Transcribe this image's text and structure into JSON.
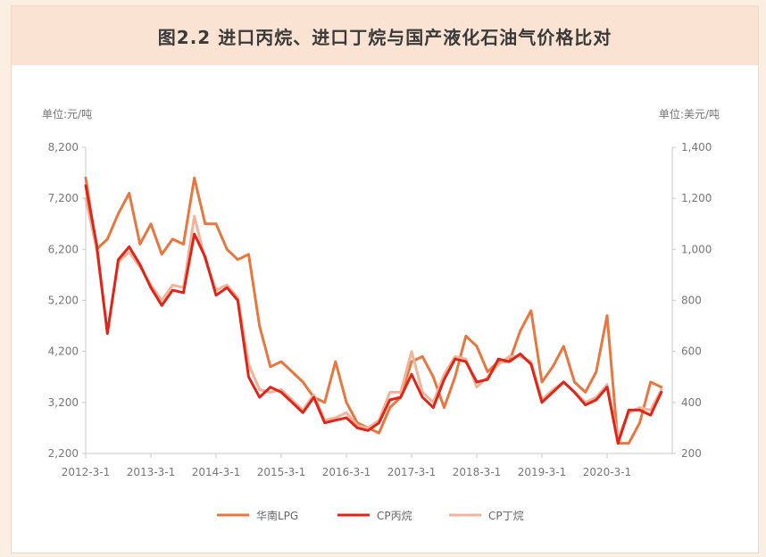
{
  "chart_data": {
    "type": "line",
    "title": "图2.2 进口丙烷、进口丁烷与国产液化石油气价格比对",
    "left_unit": "单位:元/吨",
    "right_unit": "单位:美元/吨",
    "ylim_left": [
      2200,
      8200
    ],
    "ylim_right": [
      200,
      1400
    ],
    "left_ticks": [
      2200,
      3200,
      4200,
      5200,
      6200,
      7200,
      8200
    ],
    "left_tick_labels": [
      "2,200",
      "3,200",
      "4,200",
      "5,200",
      "6,200",
      "7,200",
      "8,200"
    ],
    "right_ticks": [
      200,
      400,
      600,
      800,
      1000,
      1200,
      1400
    ],
    "right_tick_labels": [
      "200",
      "400",
      "600",
      "800",
      "1,000",
      "1,200",
      "1,400"
    ],
    "x_tick_labels": [
      "2012-3-1",
      "2013-3-1",
      "2014-3-1",
      "2015-3-1",
      "2016-3-1",
      "2017-3-1",
      "2018-3-1",
      "2019-3-1",
      "2020-3-1"
    ],
    "x_range": [
      "2012-03",
      "2021-03"
    ],
    "series": [
      {
        "name": "华南LPG",
        "axis": "left",
        "color": "#e8773f",
        "x": [
          "2012-03",
          "2012-05",
          "2012-07",
          "2012-09",
          "2012-11",
          "2013-01",
          "2013-03",
          "2013-05",
          "2013-07",
          "2013-09",
          "2013-11",
          "2014-01",
          "2014-03",
          "2014-05",
          "2014-07",
          "2014-09",
          "2014-11",
          "2015-01",
          "2015-03",
          "2015-05",
          "2015-07",
          "2015-09",
          "2015-11",
          "2016-01",
          "2016-03",
          "2016-05",
          "2016-07",
          "2016-09",
          "2016-11",
          "2017-01",
          "2017-03",
          "2017-05",
          "2017-07",
          "2017-09",
          "2017-11",
          "2018-01",
          "2018-03",
          "2018-05",
          "2018-07",
          "2018-09",
          "2018-11",
          "2019-01",
          "2019-03",
          "2019-05",
          "2019-07",
          "2019-09",
          "2019-11",
          "2020-01",
          "2020-03",
          "2020-05",
          "2020-07",
          "2020-09",
          "2020-11",
          "2021-01"
        ],
        "values": [
          7600,
          6200,
          6400,
          6900,
          7300,
          6300,
          6700,
          6100,
          6400,
          6300,
          7600,
          6700,
          6700,
          6200,
          6000,
          6100,
          4700,
          3900,
          4000,
          3800,
          3600,
          3300,
          3200,
          4000,
          3200,
          2800,
          2700,
          2600,
          3100,
          3300,
          4000,
          4100,
          3700,
          3100,
          3700,
          4500,
          4300,
          3800,
          4000,
          4000,
          4600,
          5000,
          3600,
          3900,
          4300,
          3600,
          3400,
          3800,
          4900,
          2400,
          2400,
          2800,
          3600,
          3500
        ]
      },
      {
        "name": "CP丙烷",
        "axis": "right",
        "color": "#e02418",
        "x": [
          "2012-03",
          "2012-05",
          "2012-07",
          "2012-09",
          "2012-11",
          "2013-01",
          "2013-03",
          "2013-05",
          "2013-07",
          "2013-09",
          "2013-11",
          "2014-01",
          "2014-03",
          "2014-05",
          "2014-07",
          "2014-09",
          "2014-11",
          "2015-01",
          "2015-03",
          "2015-05",
          "2015-07",
          "2015-09",
          "2015-11",
          "2016-01",
          "2016-03",
          "2016-05",
          "2016-07",
          "2016-09",
          "2016-11",
          "2017-01",
          "2017-03",
          "2017-05",
          "2017-07",
          "2017-09",
          "2017-11",
          "2018-01",
          "2018-03",
          "2018-05",
          "2018-07",
          "2018-09",
          "2018-11",
          "2019-01",
          "2019-03",
          "2019-05",
          "2019-07",
          "2019-09",
          "2019-11",
          "2020-01",
          "2020-03",
          "2020-05",
          "2020-07",
          "2020-09",
          "2020-11",
          "2021-01"
        ],
        "values": [
          1250,
          1020,
          670,
          960,
          1010,
          940,
          850,
          780,
          840,
          830,
          1060,
          970,
          820,
          850,
          800,
          500,
          420,
          460,
          440,
          400,
          360,
          420,
          320,
          330,
          340,
          300,
          290,
          320,
          410,
          420,
          510,
          420,
          380,
          490,
          570,
          560,
          480,
          490,
          570,
          560,
          590,
          550,
          400,
          440,
          480,
          440,
          390,
          410,
          460,
          240,
          370,
          370,
          350,
          440
        ]
      },
      {
        "name": "CP丁烷",
        "axis": "right",
        "color": "#f2b39a",
        "x": [
          "2012-03",
          "2012-05",
          "2012-07",
          "2012-09",
          "2012-11",
          "2013-01",
          "2013-03",
          "2013-05",
          "2013-07",
          "2013-09",
          "2013-11",
          "2014-01",
          "2014-03",
          "2014-05",
          "2014-07",
          "2014-09",
          "2014-11",
          "2015-01",
          "2015-03",
          "2015-05",
          "2015-07",
          "2015-09",
          "2015-11",
          "2016-01",
          "2016-03",
          "2016-05",
          "2016-07",
          "2016-09",
          "2016-11",
          "2017-01",
          "2017-03",
          "2017-05",
          "2017-07",
          "2017-09",
          "2017-11",
          "2018-01",
          "2018-03",
          "2018-05",
          "2018-07",
          "2018-09",
          "2018-11",
          "2019-01",
          "2019-03",
          "2019-05",
          "2019-07",
          "2019-09",
          "2019-11",
          "2020-01",
          "2020-03",
          "2020-05",
          "2020-07",
          "2020-09",
          "2020-11",
          "2021-01"
        ],
        "values": [
          1200,
          1000,
          680,
          950,
          990,
          930,
          860,
          800,
          860,
          850,
          1130,
          960,
          840,
          860,
          810,
          550,
          450,
          440,
          450,
          410,
          370,
          430,
          330,
          340,
          360,
          310,
          300,
          330,
          440,
          440,
          600,
          440,
          400,
          510,
          580,
          570,
          460,
          500,
          550,
          580,
          580,
          560,
          410,
          450,
          480,
          440,
          400,
          420,
          470,
          260,
          360,
          380,
          370,
          450
        ]
      }
    ]
  }
}
